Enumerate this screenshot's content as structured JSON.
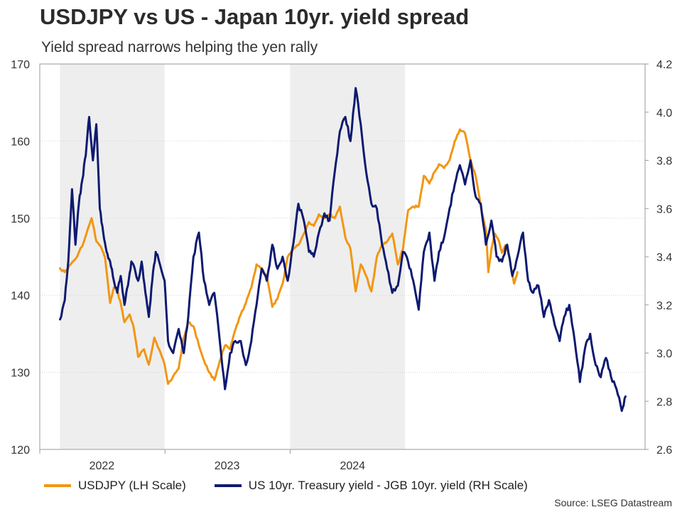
{
  "chart_data": {
    "type": "line",
    "title": "USDJPY vs US - Japan 10yr. yield spread",
    "subtitle": "Yield spread narrows helping the yen rally",
    "source": "Source: LSEG Datastream",
    "x_tick_labels": [
      "2022",
      "2023",
      "2024"
    ],
    "y_left": {
      "min": 120,
      "max": 170,
      "ticks": [
        "120",
        "130",
        "140",
        "150",
        "160",
        "170"
      ]
    },
    "y_right": {
      "min": 2.6,
      "max": 4.2,
      "ticks": [
        "2.6",
        "2.8",
        "3.0",
        "3.2",
        "3.4",
        "3.6",
        "3.8",
        "4.0",
        "4.2"
      ]
    },
    "grid": "horizontal",
    "legend_position": "bottom",
    "shaded_periods": [
      [
        "2022-03-01",
        "2022-12-31"
      ],
      [
        "2024-01-01",
        "2024-12-01"
      ]
    ],
    "series": [
      {
        "name": "USDJPY (LH Scale)",
        "axis": "left",
        "color": "#f29611",
        "points": [
          [
            "2022-03-01",
            143.5
          ],
          [
            "2022-03-15",
            143.0
          ],
          [
            "2022-04-01",
            144.0
          ],
          [
            "2022-04-20",
            145.0
          ],
          [
            "2022-05-10",
            147.0
          ],
          [
            "2022-06-01",
            150.0
          ],
          [
            "2022-06-15",
            147.0
          ],
          [
            "2022-07-01",
            146.0
          ],
          [
            "2022-07-10",
            145.0
          ],
          [
            "2022-07-25",
            139.0
          ],
          [
            "2022-08-05",
            141.0
          ],
          [
            "2022-08-15",
            140.5
          ],
          [
            "2022-08-25",
            139.0
          ],
          [
            "2022-09-05",
            136.5
          ],
          [
            "2022-09-20",
            137.5
          ],
          [
            "2022-10-01",
            136.0
          ],
          [
            "2022-10-15",
            132.0
          ],
          [
            "2022-11-01",
            133.0
          ],
          [
            "2022-11-15",
            131.0
          ],
          [
            "2022-12-01",
            134.5
          ],
          [
            "2022-12-15",
            133.0
          ],
          [
            "2022-12-31",
            131.0
          ],
          [
            "2023-01-10",
            128.5
          ],
          [
            "2023-01-25",
            129.5
          ],
          [
            "2023-02-10",
            130.5
          ],
          [
            "2023-02-25",
            134.5
          ],
          [
            "2023-03-10",
            136.5
          ],
          [
            "2023-03-25",
            136.0
          ],
          [
            "2023-04-10",
            133.5
          ],
          [
            "2023-04-25",
            131.5
          ],
          [
            "2023-05-10",
            130.0
          ],
          [
            "2023-05-25",
            129.0
          ],
          [
            "2023-06-10",
            131.5
          ],
          [
            "2023-06-25",
            133.5
          ],
          [
            "2023-07-10",
            133.0
          ],
          [
            "2023-07-25",
            135.5
          ],
          [
            "2023-08-10",
            137.5
          ],
          [
            "2023-08-25",
            139.0
          ],
          [
            "2023-09-10",
            141.0
          ],
          [
            "2023-09-25",
            144.0
          ],
          [
            "2023-10-10",
            143.5
          ],
          [
            "2023-10-25",
            142.5
          ],
          [
            "2023-11-10",
            138.5
          ],
          [
            "2023-11-25",
            139.5
          ],
          [
            "2023-12-10",
            141.5
          ],
          [
            "2023-12-25",
            145.0
          ],
          [
            "2024-01-10",
            146.0
          ],
          [
            "2024-01-25",
            146.5
          ],
          [
            "2024-02-10",
            148.0
          ],
          [
            "2024-02-25",
            149.5
          ],
          [
            "2024-03-10",
            149.0
          ],
          [
            "2024-03-25",
            150.5
          ],
          [
            "2024-04-10",
            150.0
          ],
          [
            "2024-04-25",
            150.5
          ],
          [
            "2024-05-10",
            150.0
          ],
          [
            "2024-05-25",
            151.5
          ],
          [
            "2024-06-10",
            147.5
          ],
          [
            "2024-06-25",
            146.0
          ],
          [
            "2024-07-10",
            140.5
          ],
          [
            "2024-07-25",
            144.0
          ],
          [
            "2024-08-10",
            142.5
          ],
          [
            "2024-08-25",
            140.5
          ],
          [
            "2024-09-10",
            145.0
          ],
          [
            "2024-09-25",
            146.5
          ],
          [
            "2024-10-10",
            147.0
          ],
          [
            "2024-10-25",
            148.0
          ],
          [
            "2024-11-10",
            144.0
          ],
          [
            "2024-11-25",
            146.0
          ],
          [
            "2024-12-10",
            151.0
          ],
          [
            "2024-12-25",
            151.5
          ],
          [
            "2025-01-10",
            151.5
          ],
          [
            "2025-01-25",
            155.5
          ],
          [
            "2025-02-10",
            154.5
          ],
          [
            "2025-02-25",
            156.0
          ],
          [
            "2025-03-10",
            157.0
          ],
          [
            "2025-03-25",
            156.5
          ],
          [
            "2025-04-10",
            157.5
          ],
          [
            "2025-04-25",
            160.0
          ],
          [
            "2025-05-10",
            161.5
          ],
          [
            "2025-05-25",
            161.0
          ],
          [
            "2025-06-10",
            157.5
          ],
          [
            "2025-06-25",
            155.5
          ],
          [
            "2025-07-10",
            151.5
          ],
          [
            "2025-07-25",
            148.5
          ],
          [
            "2025-08-01",
            143.0
          ],
          [
            "2025-08-10",
            146.0
          ],
          [
            "2025-08-20",
            148.0
          ],
          [
            "2025-09-01",
            147.0
          ],
          [
            "2025-09-10",
            145.5
          ],
          [
            "2025-09-20",
            146.5
          ],
          [
            "2025-10-01",
            145.0
          ],
          [
            "2025-10-15",
            141.5
          ],
          [
            "2025-10-25",
            143.0
          ]
        ]
      },
      {
        "name": "US 10yr. Treasury yield - JGB 10yr. yield (RH Scale)",
        "axis": "right",
        "color": "#0d1a70",
        "points": [
          [
            "2022-03-01",
            3.14
          ],
          [
            "2022-03-15",
            3.22
          ],
          [
            "2022-03-25",
            3.38
          ],
          [
            "2022-04-05",
            3.68
          ],
          [
            "2022-04-15",
            3.45
          ],
          [
            "2022-04-25",
            3.62
          ],
          [
            "2022-05-05",
            3.72
          ],
          [
            "2022-05-15",
            3.82
          ],
          [
            "2022-05-25",
            3.98
          ],
          [
            "2022-06-05",
            3.8
          ],
          [
            "2022-06-15",
            3.95
          ],
          [
            "2022-06-25",
            3.6
          ],
          [
            "2022-07-05",
            3.5
          ],
          [
            "2022-07-15",
            3.42
          ],
          [
            "2022-07-25",
            3.38
          ],
          [
            "2022-08-05",
            3.3
          ],
          [
            "2022-08-15",
            3.25
          ],
          [
            "2022-08-25",
            3.32
          ],
          [
            "2022-09-05",
            3.2
          ],
          [
            "2022-09-15",
            3.28
          ],
          [
            "2022-09-25",
            3.38
          ],
          [
            "2022-10-05",
            3.35
          ],
          [
            "2022-10-15",
            3.3
          ],
          [
            "2022-10-25",
            3.38
          ],
          [
            "2022-11-05",
            3.25
          ],
          [
            "2022-11-15",
            3.15
          ],
          [
            "2022-11-25",
            3.3
          ],
          [
            "2022-12-05",
            3.42
          ],
          [
            "2022-12-15",
            3.38
          ],
          [
            "2022-12-31",
            3.3
          ],
          [
            "2023-01-10",
            3.05
          ],
          [
            "2023-01-25",
            3.0
          ],
          [
            "2023-02-10",
            3.1
          ],
          [
            "2023-02-25",
            3.0
          ],
          [
            "2023-03-10",
            3.15
          ],
          [
            "2023-03-25",
            3.4
          ],
          [
            "2023-04-10",
            3.5
          ],
          [
            "2023-04-25",
            3.3
          ],
          [
            "2023-05-10",
            3.2
          ],
          [
            "2023-05-25",
            3.25
          ],
          [
            "2023-06-10",
            3.05
          ],
          [
            "2023-06-25",
            2.85
          ],
          [
            "2023-07-10",
            3.0
          ],
          [
            "2023-07-25",
            3.05
          ],
          [
            "2023-08-10",
            3.05
          ],
          [
            "2023-08-25",
            2.95
          ],
          [
            "2023-09-10",
            3.05
          ],
          [
            "2023-09-25",
            3.2
          ],
          [
            "2023-10-10",
            3.35
          ],
          [
            "2023-10-25",
            3.3
          ],
          [
            "2023-11-10",
            3.45
          ],
          [
            "2023-11-25",
            3.35
          ],
          [
            "2023-12-10",
            3.4
          ],
          [
            "2023-12-25",
            3.3
          ],
          [
            "2024-01-10",
            3.45
          ],
          [
            "2024-01-25",
            3.62
          ],
          [
            "2024-02-10",
            3.55
          ],
          [
            "2024-02-25",
            3.42
          ],
          [
            "2024-03-10",
            3.4
          ],
          [
            "2024-03-25",
            3.5
          ],
          [
            "2024-04-10",
            3.58
          ],
          [
            "2024-04-25",
            3.55
          ],
          [
            "2024-05-10",
            3.75
          ],
          [
            "2024-05-25",
            3.92
          ],
          [
            "2024-06-10",
            3.98
          ],
          [
            "2024-06-25",
            3.88
          ],
          [
            "2024-07-10",
            4.1
          ],
          [
            "2024-07-25",
            3.95
          ],
          [
            "2024-08-10",
            3.75
          ],
          [
            "2024-08-25",
            3.62
          ],
          [
            "2024-09-10",
            3.6
          ],
          [
            "2024-09-25",
            3.45
          ],
          [
            "2024-10-10",
            3.35
          ],
          [
            "2024-10-25",
            3.25
          ],
          [
            "2024-11-10",
            3.28
          ],
          [
            "2024-11-25",
            3.42
          ],
          [
            "2024-12-10",
            3.38
          ],
          [
            "2024-12-25",
            3.3
          ],
          [
            "2025-01-10",
            3.18
          ],
          [
            "2025-01-25",
            3.42
          ],
          [
            "2025-02-10",
            3.5
          ],
          [
            "2025-02-25",
            3.3
          ],
          [
            "2025-03-10",
            3.42
          ],
          [
            "2025-03-25",
            3.48
          ],
          [
            "2025-04-10",
            3.6
          ],
          [
            "2025-04-25",
            3.7
          ],
          [
            "2025-05-10",
            3.78
          ],
          [
            "2025-05-25",
            3.7
          ],
          [
            "2025-06-10",
            3.8
          ],
          [
            "2025-06-25",
            3.65
          ],
          [
            "2025-07-10",
            3.62
          ],
          [
            "2025-07-25",
            3.45
          ],
          [
            "2025-08-10",
            3.55
          ],
          [
            "2025-08-25",
            3.4
          ],
          [
            "2025-09-10",
            3.38
          ],
          [
            "2025-09-25",
            3.45
          ],
          [
            "2025-10-10",
            3.32
          ],
          [
            "2025-10-25",
            3.4
          ],
          [
            "2025-11-10",
            3.5
          ],
          [
            "2025-11-25",
            3.3
          ],
          [
            "2025-12-10",
            3.25
          ],
          [
            "2025-12-25",
            3.28
          ],
          [
            "2026-01-10",
            3.15
          ],
          [
            "2026-01-25",
            3.22
          ],
          [
            "2026-02-10",
            3.12
          ],
          [
            "2026-02-25",
            3.05
          ],
          [
            "2026-03-10",
            3.15
          ],
          [
            "2026-03-25",
            3.2
          ],
          [
            "2026-04-10",
            3.05
          ],
          [
            "2026-04-25",
            2.88
          ],
          [
            "2026-05-10",
            3.02
          ],
          [
            "2026-05-25",
            3.08
          ],
          [
            "2026-06-10",
            2.95
          ],
          [
            "2026-06-25",
            2.9
          ],
          [
            "2026-07-10",
            2.98
          ],
          [
            "2026-07-25",
            2.9
          ],
          [
            "2026-08-10",
            2.85
          ],
          [
            "2026-08-25",
            2.76
          ],
          [
            "2026-09-05",
            2.82
          ]
        ]
      }
    ]
  }
}
